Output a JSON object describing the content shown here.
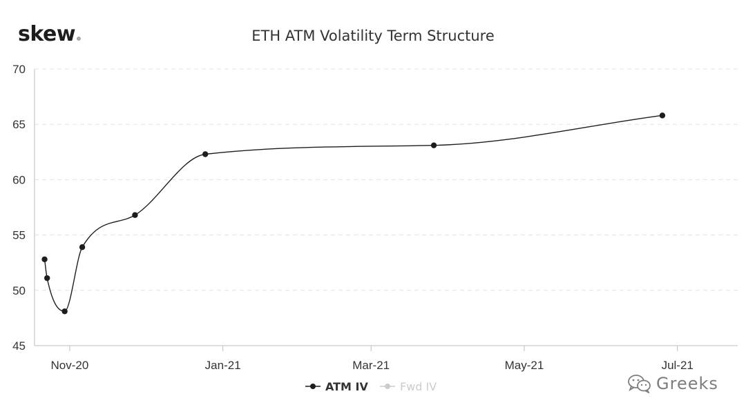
{
  "brand": {
    "name": "skew"
  },
  "chart_data": {
    "type": "line",
    "title": "ETH ATM Volatility Term Structure",
    "xlabel": "",
    "ylabel": "",
    "x_type": "date",
    "xlim": [
      "2020-10-18",
      "2021-07-25"
    ],
    "ylim": [
      45,
      70
    ],
    "y_ticks": [
      45,
      50,
      55,
      60,
      65,
      70
    ],
    "x_ticks": [
      {
        "date": "2020-11-01",
        "label": "Nov-20"
      },
      {
        "date": "2021-01-01",
        "label": "Jan-21"
      },
      {
        "date": "2021-03-01",
        "label": "Mar-21"
      },
      {
        "date": "2021-05-01",
        "label": "May-21"
      },
      {
        "date": "2021-07-01",
        "label": "Jul-21"
      }
    ],
    "grid": {
      "horizontal": true,
      "vertical": false
    },
    "legend": "bottom-center",
    "series": [
      {
        "name": "ATM IV",
        "color": "#1d1d1b",
        "visible": true,
        "points": [
          {
            "x": "2020-10-22",
            "y": 52.8
          },
          {
            "x": "2020-10-23",
            "y": 51.1
          },
          {
            "x": "2020-10-30",
            "y": 48.1
          },
          {
            "x": "2020-11-06",
            "y": 53.9
          },
          {
            "x": "2020-11-27",
            "y": 56.8
          },
          {
            "x": "2020-12-25",
            "y": 62.3
          },
          {
            "x": "2021-03-26",
            "y": 63.1
          },
          {
            "x": "2021-06-25",
            "y": 65.8
          }
        ]
      },
      {
        "name": "Fwd IV",
        "color": "#cccccc",
        "visible": false,
        "points": []
      }
    ]
  },
  "watermark": {
    "text": "Greeks",
    "icon": "wechat-icon"
  }
}
